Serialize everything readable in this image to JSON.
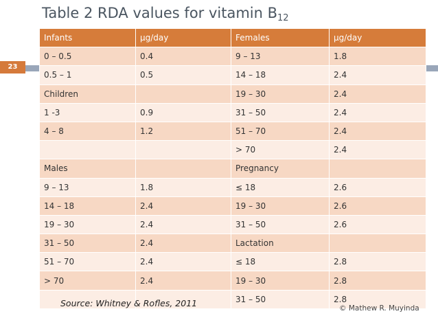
{
  "slide": {
    "title": "Table 2 RDA values for vitamin B",
    "title_subscript": "12",
    "slide_number": "23",
    "source": "Source: Whitney & Rofles, 2011",
    "copyright": "© Mathew R. Muyinda"
  },
  "table": {
    "headers": [
      "Infants",
      "μg/day",
      "Females",
      "μg/day"
    ],
    "rows": [
      [
        "0 – 0.5",
        "0.4",
        "9 – 13",
        "1.8"
      ],
      [
        "0.5 – 1",
        "0.5",
        "14 – 18",
        "2.4"
      ],
      [
        "Children",
        "",
        "19 – 30",
        "2.4"
      ],
      [
        "1 -3",
        "0.9",
        "31 – 50",
        "2.4"
      ],
      [
        "4 – 8",
        "1.2",
        "51 – 70",
        "2.4"
      ],
      [
        "",
        "",
        "> 70",
        "2.4"
      ],
      [
        "Males",
        "",
        "Pregnancy",
        ""
      ],
      [
        "9 – 13",
        "1.8",
        "≤ 18",
        "2.6"
      ],
      [
        "14 – 18",
        "2.4",
        "19 – 30",
        "2.6"
      ],
      [
        "19 – 30",
        "2.4",
        "31 – 50",
        "2.6"
      ],
      [
        "31 – 50",
        "2.4",
        "Lactation",
        ""
      ],
      [
        "51 – 70",
        "2.4",
        "≤ 18",
        "2.8"
      ],
      [
        "> 70",
        "2.4",
        "19 – 30",
        "2.8"
      ],
      [
        "",
        "",
        "31 – 50",
        "2.8"
      ]
    ]
  },
  "colors": {
    "header_bg": "#d67c3a",
    "row_odd_bg": "#f7d8c4",
    "row_even_bg": "#fcede4",
    "accent_bar": "#99a6b9"
  }
}
